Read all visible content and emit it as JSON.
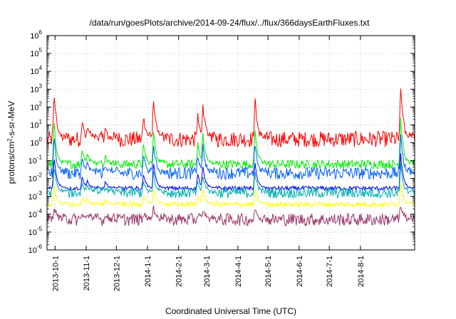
{
  "chart_data": {
    "type": "line",
    "title": "/data/run/goesPlots/archive/2014-09-24/flux/../flux/366daysEarthFluxes.txt",
    "xlabel": "Coordinated Universal Time (UTC)",
    "ylabel_main": "protons/cm",
    "ylabel_sup": "2",
    "ylabel_rest": "-s-sr-MeV",
    "yscale": "log",
    "ylim": [
      1e-06,
      1000000.0
    ],
    "y_ticks": [
      {
        "base": "10",
        "exp": "-6"
      },
      {
        "base": "10",
        "exp": "-5"
      },
      {
        "base": "10",
        "exp": "-4"
      },
      {
        "base": "10",
        "exp": "-3"
      },
      {
        "base": "10",
        "exp": "-2"
      },
      {
        "base": "10",
        "exp": "-1"
      },
      {
        "base": "10",
        "exp": "0"
      },
      {
        "base": "10",
        "exp": "1"
      },
      {
        "base": "10",
        "exp": "2"
      },
      {
        "base": "10",
        "exp": "3"
      },
      {
        "base": "10",
        "exp": "4"
      },
      {
        "base": "10",
        "exp": "5"
      },
      {
        "base": "10",
        "exp": "6"
      }
    ],
    "xlim": [
      "2013-09-23",
      "2014-09-24"
    ],
    "x_ticks": [
      "2013-10-1",
      "2013-11-1",
      "2013-12-1",
      "2014-1-1",
      "2014-2-1",
      "2014-3-1",
      "2014-4-1",
      "2014-5-1",
      "2014-6-1",
      "2014-7-1",
      "2014-8-1"
    ],
    "grid": true,
    "series": [
      {
        "color": "#ff0000",
        "baseline_log10": 0.2,
        "noise": 0.45
      },
      {
        "color": "#00ee00",
        "baseline_log10": -1.2,
        "noise": 0.25
      },
      {
        "color": "#0060ff",
        "baseline_log10": -1.7,
        "noise": 0.35
      },
      {
        "color": "#0000ee",
        "baseline_log10": -2.55,
        "noise": 0.12
      },
      {
        "color": "#00b0b0",
        "baseline_log10": -2.8,
        "noise": 0.3
      },
      {
        "color": "#ffff00",
        "baseline_log10": -3.45,
        "noise": 0.15
      },
      {
        "color": "#993366",
        "baseline_log10": -4.3,
        "noise": 0.35
      }
    ],
    "events": [
      {
        "date": "2013-09-30",
        "peak_log10": 3.0
      },
      {
        "date": "2013-10-28",
        "peak_log10": 1.2
      },
      {
        "date": "2013-11-02",
        "peak_log10": 1.0
      },
      {
        "date": "2013-11-20",
        "peak_log10": 0.8
      },
      {
        "date": "2013-12-28",
        "peak_log10": 1.5
      },
      {
        "date": "2014-01-07",
        "peak_log10": 2.5
      },
      {
        "date": "2014-02-20",
        "peak_log10": 1.5
      },
      {
        "date": "2014-02-25",
        "peak_log10": 2.3
      },
      {
        "date": "2014-04-18",
        "peak_log10": 2.5
      },
      {
        "date": "2014-09-10",
        "peak_log10": 3.3
      }
    ]
  }
}
